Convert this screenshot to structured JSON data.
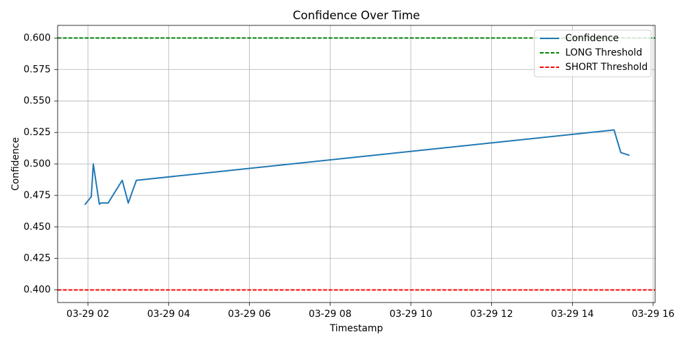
{
  "chart_data": {
    "type": "line",
    "title": "Confidence Over Time",
    "xlabel": "Timestamp",
    "ylabel": "Confidence",
    "x_ticks": [
      "03-29 02",
      "03-29 04",
      "03-29 06",
      "03-29 08",
      "03-29 10",
      "03-29 12",
      "03-29 14",
      "03-29 16"
    ],
    "y_ticks": [
      "0.400",
      "0.425",
      "0.450",
      "0.475",
      "0.500",
      "0.525",
      "0.550",
      "0.575",
      "0.600"
    ],
    "xlim": [
      "03-29 01:15",
      "03-29 16:03"
    ],
    "ylim": [
      0.39,
      0.61
    ],
    "grid": true,
    "legend": "top-right",
    "series": [
      {
        "name": "Confidence",
        "color": "#1f77b4",
        "style": "solid",
        "x": [
          "03-29 01:56",
          "03-29 02:05",
          "03-29 02:08",
          "03-29 02:17",
          "03-29 02:19",
          "03-29 02:30",
          "03-29 02:51",
          "03-29 03:00",
          "03-29 03:12",
          "03-29 15:02",
          "03-29 15:12",
          "03-29 15:24"
        ],
        "y": [
          0.468,
          0.474,
          0.5,
          0.468,
          0.469,
          0.469,
          0.487,
          0.469,
          0.487,
          0.527,
          0.509,
          0.507
        ]
      }
    ],
    "hlines": [
      {
        "name": "LONG Threshold",
        "y": 0.6,
        "color": "#008000",
        "style": "dashed"
      },
      {
        "name": "SHORT Threshold",
        "y": 0.4,
        "color": "#ff0000",
        "style": "dashed"
      }
    ]
  }
}
